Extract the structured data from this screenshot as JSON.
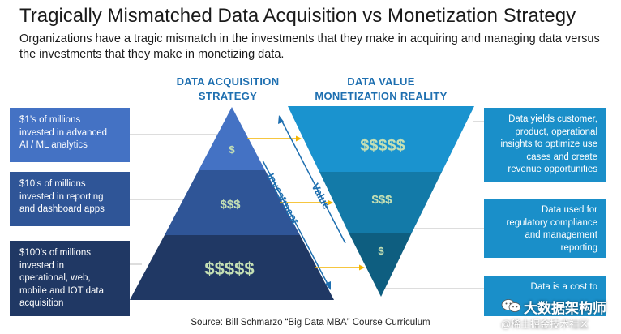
{
  "title": "Tragically Mismatched Data Acquisition vs Monetization Strategy",
  "subtitle": "Organizations have a tragic mismatch in the investments that they make in acquiring and managing data versus the investments that they make in monetizing data.",
  "left_header": [
    "DATA ACQUISITION",
    "STRATEGY"
  ],
  "right_header": [
    "DATA VALUE",
    "MONETIZATION REALITY"
  ],
  "left_boxes": [
    {
      "lines": [
        "$1’s of millions",
        "invested in advanced",
        "AI / ML analytics"
      ]
    },
    {
      "lines": [
        "$10’s of millions",
        "invested in reporting",
        "and dashboard apps"
      ]
    },
    {
      "lines": [
        "$100’s of millions",
        "invested in",
        "operational, web,",
        "mobile and IOT data",
        "acquisition"
      ]
    }
  ],
  "pyramid_labels": [
    "$",
    "$$$",
    "$$$$$"
  ],
  "funnel_labels": [
    "$$$$$",
    "$$$",
    "$"
  ],
  "investment_label": "Investment",
  "value_label": "Value",
  "right_boxes": [
    {
      "lines": [
        "Data yields customer,",
        "product, operational",
        "insights to optimize use",
        "cases and create",
        "revenue opportunities"
      ]
    },
    {
      "lines": [
        "Data used for",
        "regulatory compliance",
        "and management",
        "reporting"
      ]
    },
    {
      "lines": [
        "Data is a cost to"
      ]
    }
  ],
  "source": "Source: Bill Schmarzo “Big Data MBA” Course Curriculum",
  "watermark": {
    "main": "大数据架构师",
    "sub": "@稀土掘金技术社区"
  },
  "colors": {
    "header_blue": "#1e6fb0",
    "left_box_1": "#4472c4",
    "left_box_2": "#2f5597",
    "left_box_3": "#203864",
    "pyramid_top": "#4472c4",
    "pyramid_mid": "#2f5597",
    "pyramid_bottom": "#203864",
    "funnel_top": "#1a93cf",
    "funnel_mid": "#137aa8",
    "funnel_bottom": "#0e5e80",
    "right_box": "#1a8fc9",
    "dollar_green": "#c5e0b4",
    "arrow_orange": "#f4b400"
  }
}
